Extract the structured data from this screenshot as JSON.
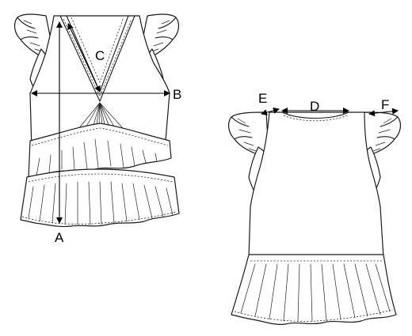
{
  "labels": {
    "a": "A",
    "b": "B",
    "c": "C",
    "d": "D",
    "e": "E",
    "f": "F"
  },
  "colors": {
    "line": "#1a1a1a",
    "background": "#ffffff"
  }
}
